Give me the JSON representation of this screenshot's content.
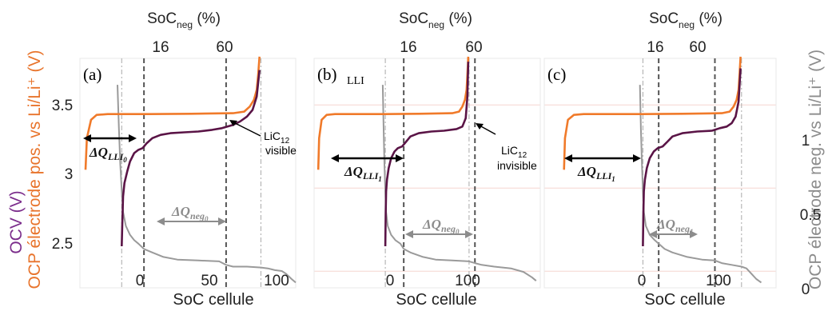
{
  "colors": {
    "cell_ocv": "#5a1446",
    "ocp_pos": "#f07a2a",
    "ocp_neg": "#9a9a9a",
    "left_axis_purple": "#7b2d8b",
    "left_axis_orange": "#e8742c",
    "right_axis": "#8c8c8c",
    "arrow_black": "#000000",
    "arrow_grey": "#8c8c8c",
    "soc_marker_line": "#555555",
    "guide_line": "#aaaaaa",
    "pink_grid": "#f6d5d0"
  },
  "figure": {
    "left_axis_label_1": "OCV (V)",
    "left_axis_label_2": "OCP électrode pos. vs Li/Li⁺ (V)",
    "right_axis_label": "OCP électrode neg. vs Li/Li⁺ (V)",
    "left_ticks": [
      "3.5",
      "3",
      "2.5"
    ],
    "right_ticks": [
      "1",
      "0.5",
      "0"
    ]
  },
  "panels": [
    {
      "letter": "(a)",
      "top_axis_main": "SoC",
      "top_axis_sub": "neg",
      "top_axis_unit": " (%)",
      "top_tick_16": "16",
      "top_tick_60": "60",
      "x_label": "SoC cellule",
      "x_ticks": [
        "0",
        "50",
        "100"
      ],
      "annotation_main": "LiC",
      "annotation_sub": "12",
      "annotation_line2": "visible",
      "dq_lli_main": "ΔQ",
      "dq_lli_sub": "LLI",
      "dq_lli_subsub": "0",
      "dq_neg_main": "ΔQ",
      "dq_neg_sub": "neg",
      "dq_neg_subsub": "0"
    },
    {
      "letter": "(b)",
      "tag": "LLI",
      "top_axis_main": "SoC",
      "top_axis_sub": "neg",
      "top_axis_unit": " (%)",
      "top_tick_16": "16",
      "top_tick_60": "60",
      "x_label": "SoC cellule",
      "x_ticks": [
        "0",
        "100"
      ],
      "annotation_main": "LiC",
      "annotation_sub": "12",
      "annotation_line2": "invisible",
      "dq_lli_main": "ΔQ",
      "dq_lli_sub": "LLI",
      "dq_lli_subsub": "1",
      "dq_neg_main": "ΔQ",
      "dq_neg_sub": "neg",
      "dq_neg_subsub": "0"
    },
    {
      "letter": "(c)",
      "top_axis_main": "SoC",
      "top_axis_sub": "neg",
      "top_axis_unit": " (%)",
      "top_tick_16": "16",
      "top_tick_60": "60",
      "x_label": "SoC cellule",
      "x_ticks": [
        "0",
        "100"
      ],
      "dq_lli_main": "ΔQ",
      "dq_lli_sub": "LLI",
      "dq_lli_subsub": "1",
      "dq_neg_main": "ΔQ",
      "dq_neg_sub": "neg",
      "dq_neg_subsub": "1"
    }
  ],
  "chart_data": [
    {
      "type": "line",
      "panel": "(a)",
      "xlabel": "SoC cellule",
      "ylabel_left": "OCV (V) / OCP électrode pos. vs Li/Li⁺ (V)",
      "ylabel_right": "OCP électrode neg. vs Li/Li⁺ (V)",
      "xlim": [
        -30,
        125
      ],
      "ylim_left": [
        2.4,
        3.78
      ],
      "ylim_right": [
        0,
        1.3
      ],
      "grid": false,
      "soc_neg_markers": [
        16,
        60
      ],
      "soc_neg_marker_x": [
        16,
        75
      ],
      "series": [
        {
          "key": "pos",
          "x": [
            -26,
            -25,
            -22,
            -18,
            -10,
            0,
            20,
            50,
            80,
            88,
            92,
            95,
            97,
            98,
            99
          ],
          "y": [
            3.11,
            3.3,
            3.41,
            3.44,
            3.445,
            3.445,
            3.445,
            3.447,
            3.45,
            3.46,
            3.49,
            3.53,
            3.59,
            3.68,
            3.79
          ]
        },
        {
          "key": "cell",
          "x": [
            0,
            0.5,
            1,
            2,
            4,
            6,
            9,
            12,
            15,
            18,
            22,
            28,
            35,
            45,
            55,
            65,
            72,
            76,
            80,
            85,
            90,
            94,
            97,
            99
          ],
          "y": [
            2.65,
            2.8,
            2.95,
            3.03,
            3.1,
            3.16,
            3.21,
            3.23,
            3.24,
            3.27,
            3.3,
            3.32,
            3.33,
            3.335,
            3.34,
            3.35,
            3.36,
            3.37,
            3.38,
            3.4,
            3.43,
            3.47,
            3.55,
            3.71
          ]
        },
        {
          "key": "neg",
          "x": [
            -3,
            -2,
            -1,
            0,
            1,
            3,
            6,
            9,
            12,
            16,
            22,
            30,
            40,
            55,
            70,
            75,
            80,
            90,
            100,
            105,
            110,
            115,
            118,
            122,
            125
          ],
          "y": [
            1.15,
            0.9,
            0.7,
            0.55,
            0.43,
            0.35,
            0.3,
            0.27,
            0.25,
            0.22,
            0.2,
            0.175,
            0.16,
            0.155,
            0.15,
            0.13,
            0.12,
            0.12,
            0.115,
            0.11,
            0.1,
            0.095,
            0.08,
            0.05,
            0.03
          ]
        }
      ]
    },
    {
      "type": "line",
      "panel": "(b)",
      "xlabel": "SoC cellule",
      "xlim": [
        -85,
        185
      ],
      "ylim_left": [
        2.4,
        3.78
      ],
      "ylim_right": [
        0,
        1.3
      ],
      "grid": false,
      "soc_neg_markers": [
        16,
        60
      ],
      "soc_neg_marker_x": [
        22,
        107
      ],
      "series": [
        {
          "key": "pos",
          "x": [
            -80,
            -79,
            -76,
            -70,
            -60,
            -40,
            0,
            40,
            80,
            88,
            92,
            95,
            97,
            98,
            99
          ],
          "y": [
            3.11,
            3.3,
            3.41,
            3.44,
            3.445,
            3.445,
            3.445,
            3.447,
            3.45,
            3.46,
            3.49,
            3.53,
            3.59,
            3.68,
            3.79
          ]
        },
        {
          "key": "cell",
          "x": [
            0,
            0.5,
            1,
            2,
            4,
            7,
            11,
            15,
            20,
            25,
            30,
            40,
            55,
            70,
            85,
            92,
            96,
            98,
            99
          ],
          "y": [
            2.65,
            2.85,
            2.98,
            3.05,
            3.12,
            3.18,
            3.22,
            3.24,
            3.25,
            3.28,
            3.31,
            3.33,
            3.34,
            3.345,
            3.355,
            3.37,
            3.42,
            3.55,
            3.76
          ]
        },
        {
          "key": "neg",
          "x": [
            -3,
            -2,
            -1,
            0,
            1,
            3,
            7,
            12,
            18,
            22,
            30,
            45,
            60,
            80,
            100,
            107,
            115,
            130,
            150,
            165,
            175,
            180
          ],
          "y": [
            1.15,
            0.9,
            0.7,
            0.55,
            0.43,
            0.35,
            0.3,
            0.27,
            0.25,
            0.22,
            0.2,
            0.175,
            0.16,
            0.155,
            0.15,
            0.14,
            0.13,
            0.12,
            0.11,
            0.09,
            0.06,
            0.04
          ]
        }
      ]
    },
    {
      "type": "line",
      "panel": "(c)",
      "xlabel": "SoC cellule",
      "xlim": [
        -100,
        135
      ],
      "ylim_left": [
        2.4,
        3.78
      ],
      "ylim_right": [
        0,
        1.3
      ],
      "grid": false,
      "soc_neg_markers": [
        16,
        60
      ],
      "soc_neg_marker_x": [
        16,
        73
      ],
      "series": [
        {
          "key": "pos",
          "x": [
            -80,
            -79,
            -76,
            -70,
            -60,
            -40,
            0,
            40,
            80,
            88,
            92,
            95,
            97,
            98,
            99
          ],
          "y": [
            3.11,
            3.3,
            3.41,
            3.44,
            3.445,
            3.445,
            3.445,
            3.447,
            3.45,
            3.46,
            3.49,
            3.53,
            3.59,
            3.68,
            3.79
          ]
        },
        {
          "key": "cell",
          "x": [
            0,
            0.5,
            1,
            2,
            4,
            7,
            11,
            15,
            20,
            25,
            30,
            40,
            55,
            70,
            78,
            85,
            90,
            94,
            97,
            99
          ],
          "y": [
            2.65,
            2.85,
            2.98,
            3.05,
            3.12,
            3.18,
            3.22,
            3.24,
            3.25,
            3.28,
            3.31,
            3.33,
            3.34,
            3.345,
            3.36,
            3.37,
            3.39,
            3.43,
            3.52,
            3.72
          ]
        },
        {
          "key": "neg",
          "x": [
            -3,
            -2,
            -1,
            0,
            1,
            3,
            7,
            12,
            16,
            22,
            30,
            45,
            60,
            73,
            80,
            90,
            100,
            105,
            110,
            115,
            120
          ],
          "y": [
            1.15,
            0.9,
            0.7,
            0.55,
            0.43,
            0.35,
            0.3,
            0.27,
            0.25,
            0.22,
            0.2,
            0.175,
            0.16,
            0.155,
            0.14,
            0.13,
            0.12,
            0.11,
            0.08,
            0.05,
            0.03
          ]
        }
      ]
    }
  ]
}
